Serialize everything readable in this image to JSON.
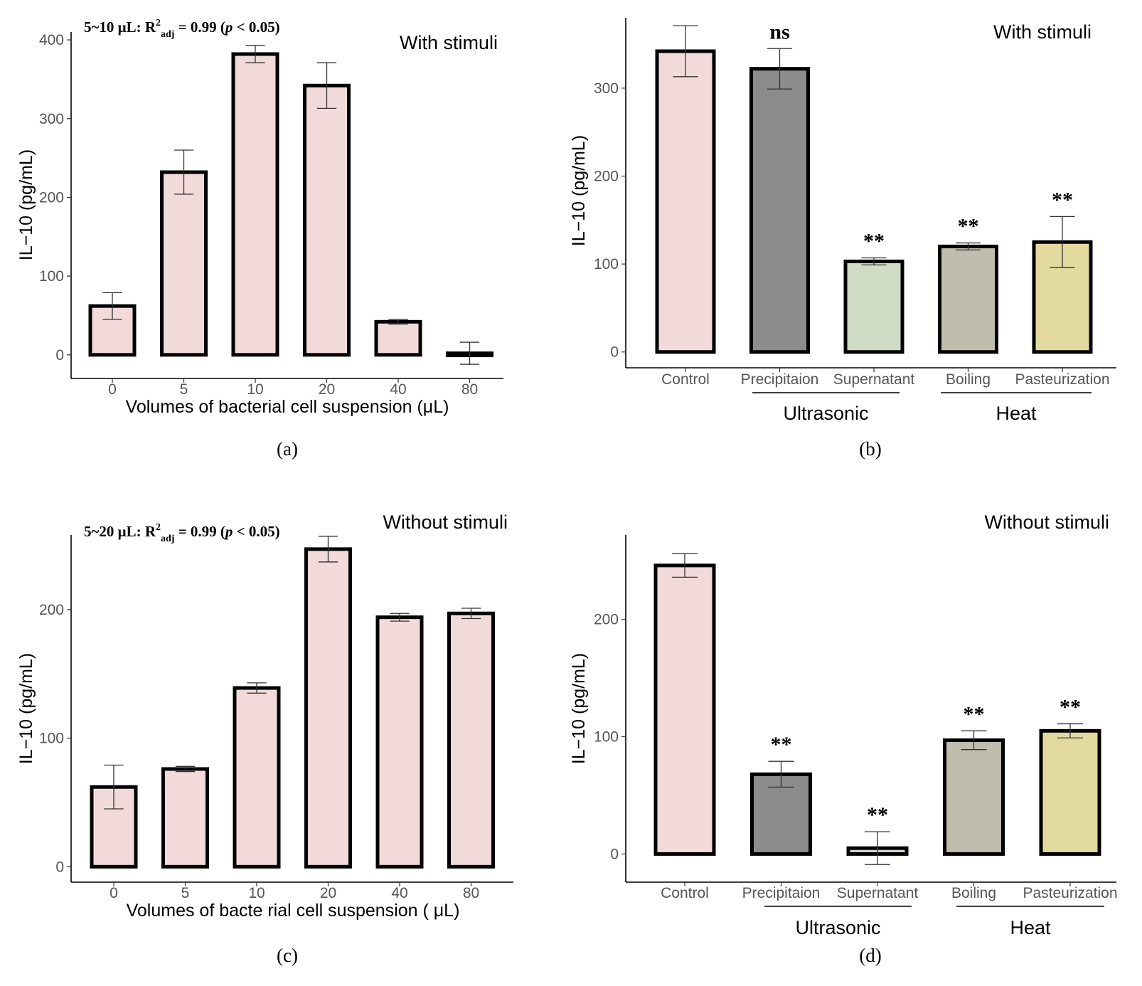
{
  "chart_data": [
    {
      "id": "a",
      "type": "bar",
      "panel_label": "(a)",
      "annotation": "With stimuli",
      "stat": {
        "prefix": "5~10 μL: R",
        "sup": "2",
        "sub": "adj",
        "mid": " = 0.99 (",
        "p": "p",
        "suffix": " < 0.05)"
      },
      "xlabel": "Volumes of bacterial cell suspension (μL)",
      "ylabel": "IL−10 (pg/mL)",
      "ylim": [
        -30,
        410
      ],
      "yticks": [
        0,
        100,
        200,
        300,
        400
      ],
      "categories": [
        "0",
        "5",
        "10",
        "20",
        "40",
        "80"
      ],
      "values": [
        62,
        232,
        382,
        342,
        42,
        2
      ],
      "errors": [
        17,
        28,
        11,
        29,
        3,
        14
      ],
      "significance": [
        "",
        "",
        "",
        "",
        "",
        ""
      ],
      "colors": [
        "#f2dadb",
        "#f2dadb",
        "#f2dadb",
        "#f2dadb",
        "#f2dadb",
        "#f2dadb"
      ],
      "grid": false
    },
    {
      "id": "b",
      "type": "bar",
      "panel_label": "(b)",
      "annotation": "With stimuli",
      "xlabel": "",
      "ylabel": "IL−10 (pg/mL)",
      "ylim": [
        -18,
        380
      ],
      "yticks": [
        0,
        100,
        200,
        300
      ],
      "categories": [
        "Control",
        "Precipitaion",
        "Supernatant",
        "Boiling",
        "Pasteurization"
      ],
      "values": [
        342,
        322,
        103,
        120,
        125
      ],
      "errors": [
        29,
        23,
        4,
        4,
        29
      ],
      "significance": [
        "",
        "ns",
        "**",
        "**",
        "**"
      ],
      "colors": [
        "#f2dadb",
        "#8c8c8c",
        "#cfdcc3",
        "#c0bcae",
        "#e2da9f"
      ],
      "groups": [
        {
          "label": "Ultrasonic"
        },
        {
          "label": "Heat"
        }
      ],
      "grid": false
    },
    {
      "id": "c",
      "type": "bar",
      "panel_label": "(c)",
      "annotation": "Without stimuli",
      "stat": {
        "prefix": "5~20 μL: R",
        "sup": "2",
        "sub": "adj",
        "mid": " = 0.99 (",
        "p": "p",
        "suffix": " < 0.05)"
      },
      "xlabel": "Volumes of bacte rial cell suspension ( μL)",
      "ylabel": "IL−10 (pg/mL)",
      "ylim": [
        -12,
        258
      ],
      "yticks": [
        0,
        100,
        200
      ],
      "categories": [
        "0",
        "5",
        "10",
        "20",
        "40",
        "80"
      ],
      "values": [
        62,
        76,
        139,
        247,
        194,
        197
      ],
      "errors": [
        17,
        2,
        4,
        10,
        3,
        4
      ],
      "significance": [
        "",
        "",
        "",
        "",
        "",
        ""
      ],
      "colors": [
        "#f2dadb",
        "#f2dadb",
        "#f2dadb",
        "#f2dadb",
        "#f2dadb",
        "#f2dadb"
      ],
      "grid": false
    },
    {
      "id": "d",
      "type": "bar",
      "panel_label": "(d)",
      "annotation": "Without stimuli",
      "xlabel": "",
      "ylabel": "IL−10 (pg/mL)",
      "ylim": [
        -24,
        272
      ],
      "yticks": [
        0,
        100,
        200
      ],
      "categories": [
        "Control",
        "Precipitaion",
        "Supernatant",
        "Boiling",
        "Pasteurization"
      ],
      "values": [
        246,
        68,
        5,
        97,
        105
      ],
      "errors": [
        10,
        11,
        14,
        8,
        6
      ],
      "significance": [
        "",
        "**",
        "**",
        "**",
        "**"
      ],
      "colors": [
        "#f2dadb",
        "#8c8c8c",
        "#cfdcc3",
        "#c0bcae",
        "#e2da9f"
      ],
      "groups": [
        {
          "label": "Ultrasonic"
        },
        {
          "label": "Heat"
        }
      ],
      "grid": false
    }
  ]
}
